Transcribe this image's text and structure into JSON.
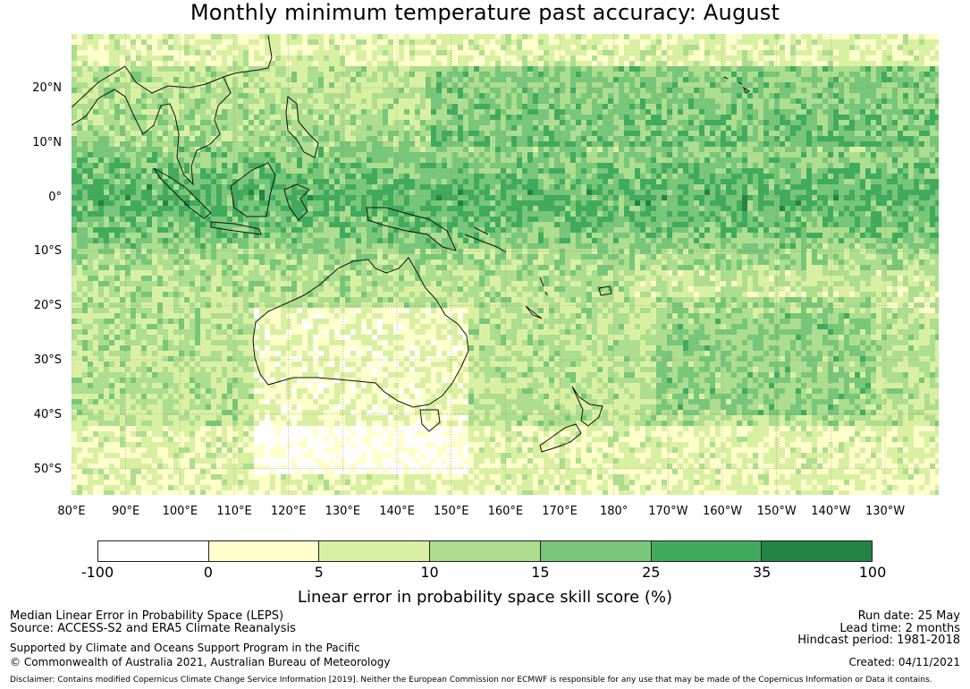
{
  "title": "Monthly minimum temperature past accuracy: August",
  "map": {
    "latitude_labels": [
      "20°N",
      "10°N",
      "0°",
      "10°S",
      "20°S",
      "30°S",
      "40°S",
      "50°S"
    ],
    "longitude_labels": [
      "80°E",
      "90°E",
      "100°E",
      "110°E",
      "120°E",
      "130°E",
      "140°E",
      "150°E",
      "160°E",
      "170°E",
      "180°",
      "170°W",
      "160°W",
      "150°W",
      "140°W",
      "130°W"
    ],
    "gridlines": true,
    "coastlines": true
  },
  "legend": {
    "tick_labels": [
      "-100",
      "0",
      "5",
      "10",
      "15",
      "25",
      "35",
      "100"
    ],
    "colors": [
      "#ffffff",
      "#ffffcc",
      "#d9f0a3",
      "#addd8e",
      "#78c679",
      "#41ab5d",
      "#238443"
    ],
    "label": "Linear error in probability space skill score (%)"
  },
  "footer": {
    "metric": "Median Linear Error in Probability Space (LEPS)",
    "source": "Source: ACCESS-S2 and ERA5 Climate Reanalysis",
    "support": "Supported by Climate and Oceans Support Program in the Pacific",
    "copyright": "© Commonwealth of Australia 2021, Australian Bureau of Meteorology",
    "disclaimer": "Disclaimer: Contains modified Copernicus Climate Change Service Information [2019]. Neither the European Commission nor ECMWF is responsible for any use that may be made of the Copernicus Information or Data it contains.",
    "run_date": "Run date: 25 May",
    "lead_time": "Lead time: 2 months",
    "hindcast": "Hindcast period: 1981-2018",
    "created": "Created: 04/11/2021"
  }
}
